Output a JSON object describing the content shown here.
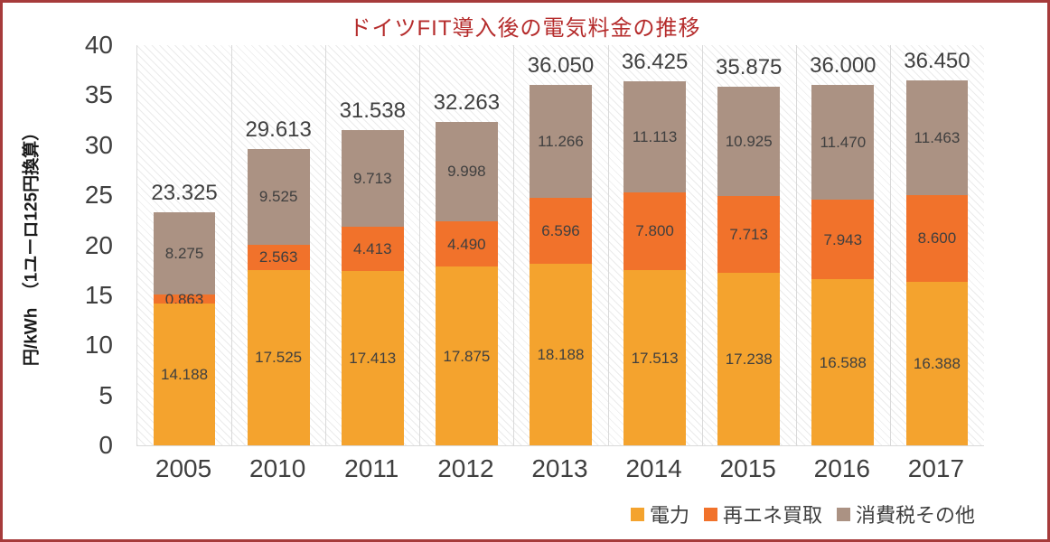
{
  "chart_data": {
    "type": "bar",
    "stacked": true,
    "title": "ドイツFIT導入後の電気料金の推移",
    "ylabel": "円/kWh　（1ユーロ125円換算）",
    "categories": [
      "2005",
      "2010",
      "2011",
      "2012",
      "2013",
      "2014",
      "2015",
      "2016",
      "2017"
    ],
    "series": [
      {
        "name": "電力",
        "color": "#F4A32E",
        "values": [
          14.188,
          17.525,
          17.413,
          17.875,
          18.188,
          17.513,
          17.238,
          16.588,
          16.388
        ]
      },
      {
        "name": "再エネ買取",
        "color": "#F1722B",
        "values": [
          0.863,
          2.563,
          4.413,
          4.49,
          6.596,
          7.8,
          7.713,
          7.943,
          8.6
        ]
      },
      {
        "name": "消費税その他",
        "color": "#AB9283",
        "values": [
          8.275,
          9.525,
          9.713,
          9.998,
          11.266,
          11.113,
          10.925,
          11.47,
          11.463
        ]
      }
    ],
    "totals": [
      "23.325",
      "29.613",
      "31.538",
      "32.263",
      "36.050",
      "36.425",
      "35.875",
      "36.000",
      "36.450"
    ],
    "value_label_decimals": 3,
    "ylim": [
      0,
      40
    ],
    "yticks": [
      0,
      5,
      10,
      15,
      20,
      25,
      30,
      35,
      40
    ],
    "grid": "vertical",
    "legend_position": "bottom-right",
    "background_pattern": "diagonal-hatch"
  }
}
